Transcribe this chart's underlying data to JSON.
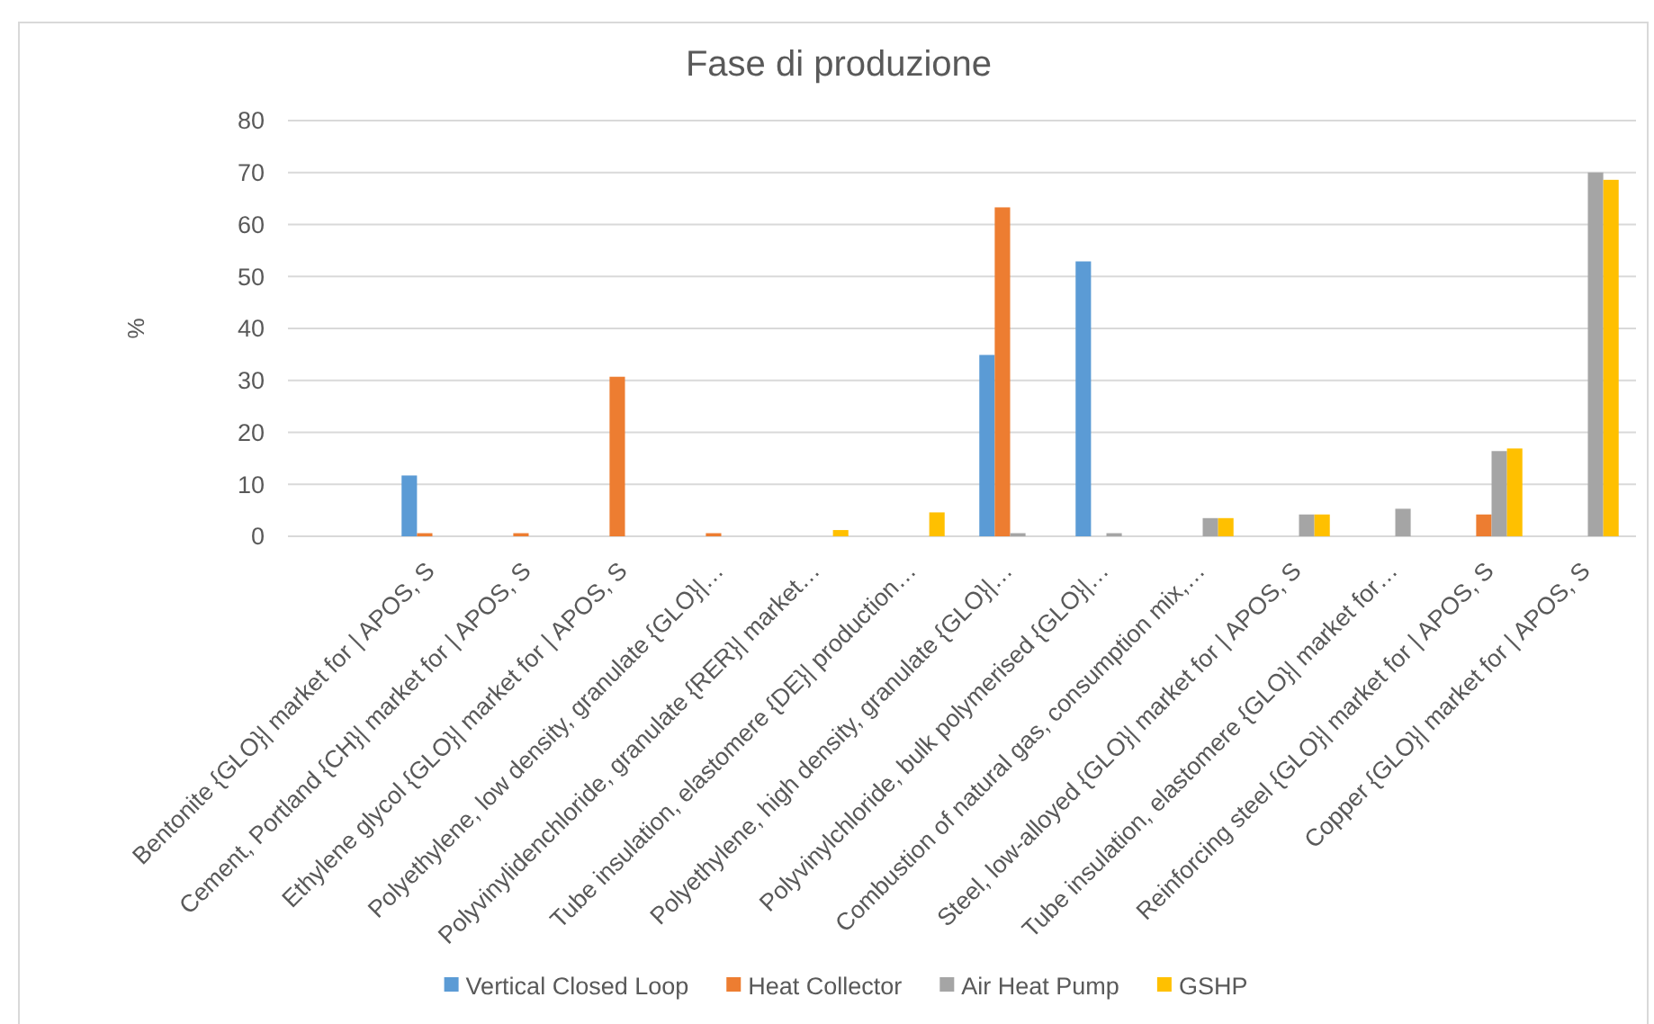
{
  "chart_data": {
    "type": "bar",
    "title": "Fase di produzione",
    "ylabel": "%",
    "categories": [
      null,
      "Bentonite {GLO}| market for | APOS, S",
      "Cement, Portland {CH}| market for | APOS, S",
      "Ethylene glycol {GLO}| market for | APOS, S",
      "Polyethylene, low density, granulate {GLO}|…",
      "Polyvinylidenchloride, granulate {RER}| market…",
      "Tube insulation, elastomere {DE}| production…",
      "Polyethylene, high density, granulate {GLO}|…",
      "Polyvinylchloride, bulk polymerised {GLO}|…",
      "Combustion of natural gas, consumption mix,…",
      "Steel, low-alloyed {GLO}| market for | APOS, S",
      "Tube insulation, elastomere {GLO}| market for…",
      "Reinforcing steel {GLO}| market for | APOS, S",
      "Copper {GLO}| market for | APOS, S"
    ],
    "series": [
      {
        "name": "Vertical Closed Loop",
        "color": "#5b9bd5",
        "values": [
          null,
          11.7,
          null,
          null,
          null,
          null,
          null,
          34.9,
          52.9,
          null,
          null,
          null,
          null,
          null
        ]
      },
      {
        "name": "Heat Collector",
        "color": "#ed7d31",
        "values": [
          null,
          0.6,
          0.6,
          30.7,
          0.6,
          null,
          null,
          63.3,
          null,
          null,
          null,
          null,
          4.2,
          null
        ]
      },
      {
        "name": "Air Heat Pump",
        "color": "#a5a5a5",
        "values": [
          null,
          null,
          null,
          null,
          null,
          null,
          null,
          0.6,
          0.6,
          3.5,
          4.2,
          5.3,
          16.4,
          70
        ]
      },
      {
        "name": "GSHP",
        "color": "#ffc000",
        "values": [
          null,
          null,
          null,
          null,
          null,
          1.2,
          4.6,
          null,
          null,
          3.5,
          4.2,
          null,
          16.9,
          68.6
        ]
      }
    ],
    "ylim": [
      0,
      80
    ],
    "yticks": [
      0,
      10,
      20,
      30,
      40,
      50,
      60,
      70,
      80
    ],
    "grid": "y",
    "legend": "bottom"
  }
}
